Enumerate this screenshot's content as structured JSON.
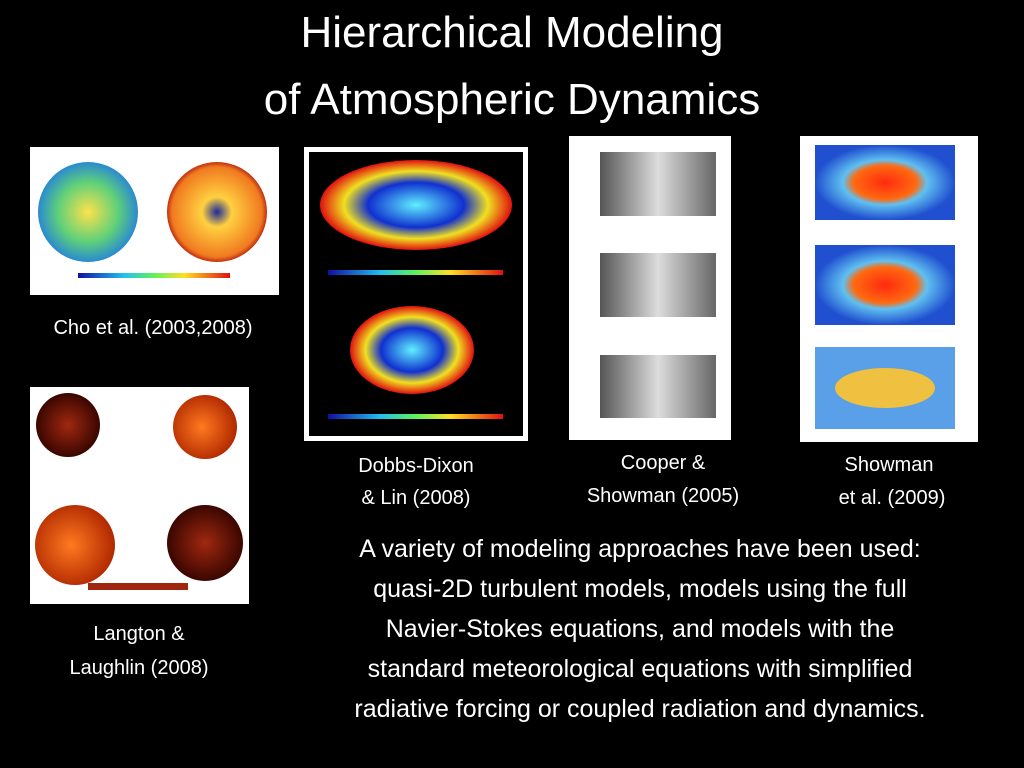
{
  "title": {
    "lines": [
      "Hierarchical Modeling",
      "of Atmospheric Dynamics"
    ]
  },
  "figures": [
    {
      "caption": [
        "Cho et al. (2003,2008)"
      ]
    },
    {
      "caption": [
        "Langton &",
        "Laughlin (2008)"
      ]
    },
    {
      "caption": [
        "Dobbs-Dixon",
        "& Lin (2008)"
      ]
    },
    {
      "caption": [
        "Cooper &",
        "Showman (2005)"
      ]
    },
    {
      "caption": [
        "Showman",
        "et al. (2009)"
      ]
    }
  ],
  "body": {
    "lines": [
      "A variety of modeling approaches have been used:",
      "quasi-2D turbulent models, models using the full",
      "Navier-Stokes equations, and models with the",
      "standard meteorological equations with simplified",
      "radiative forcing or coupled radiation and dynamics."
    ]
  }
}
